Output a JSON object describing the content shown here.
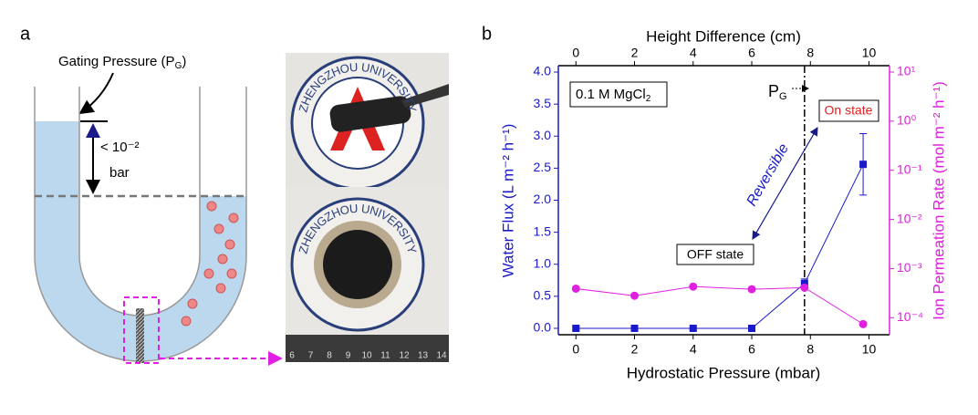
{
  "panel_a": {
    "label": "a",
    "gating_pressure": {
      "text": "Gating Pressure (P",
      "sub": "G",
      "end": ")"
    },
    "pressure_value": "< 10⁻²",
    "pressure_unit": "bar",
    "photos": [
      {
        "logo_text": "ZHENGZHOU UNIVERSITY"
      },
      {
        "logo_text": "ZHENGZHOU UNIVERSITY"
      }
    ],
    "ruler_labels": [
      "6",
      "7",
      "8",
      "9",
      "10",
      "11",
      "12",
      "13",
      "14"
    ]
  },
  "chart_data": {
    "type": "scatter-line",
    "panel_label": "b",
    "x_label": "Hydrostatic Pressure (mbar)",
    "x2_label": "Height Difference (cm)",
    "y_label": "Water Flux (L m⁻² h⁻¹)",
    "y2_label": "Ion Permeation Rate (mol m⁻² h⁻¹)",
    "xlim": [
      -0.6,
      10.7
    ],
    "xticks": [
      0,
      2,
      4,
      6,
      8,
      10
    ],
    "x2lim": [
      -0.6,
      10.7
    ],
    "x2ticks": [
      0,
      2,
      4,
      6,
      8,
      10
    ],
    "ylim": [
      -0.1,
      4.1
    ],
    "yticks": [
      {
        "value": 0,
        "label": "0.0"
      },
      0.5,
      {
        "value": 1,
        "label": "1.0"
      },
      1.5,
      {
        "value": 2,
        "label": "2.0"
      },
      2.5,
      {
        "value": 3,
        "label": "3.0"
      },
      3.5,
      {
        "value": 4,
        "label": "4.0"
      }
    ],
    "y2lim": [
      4.5e-05,
      13.5
    ],
    "y2_log": true,
    "y2ticks": [
      {
        "value": 0.0001,
        "label": "10⁻⁴"
      },
      {
        "value": 0.001,
        "label": "10⁻³"
      },
      {
        "value": 0.01,
        "label": "10⁻²"
      },
      {
        "value": 0.1,
        "label": "10⁻¹"
      },
      {
        "value": 1,
        "label": "10⁰"
      },
      {
        "value": 10,
        "label": "10¹"
      }
    ],
    "x": [
      0,
      2,
      4,
      6,
      7.8,
      9.8
    ],
    "series": [
      {
        "color": "#1a1acc",
        "marker": "square",
        "values": [
          0,
          0,
          0,
          0,
          0.7,
          2.56
        ],
        "errors": [
          0.02,
          0.02,
          0.02,
          0.02,
          0.07,
          0.48
        ]
      },
      {
        "color": "#e020e0",
        "marker": "circle",
        "axis": "y2",
        "values": [
          0.00039,
          0.00028,
          0.00043,
          0.00038,
          0.00041,
          7.4e-05
        ]
      }
    ],
    "gating_x": 7.8,
    "annotations": {
      "salt": {
        "text": "0.1 M MgCl",
        "sub": "2"
      },
      "gating": {
        "text": "P",
        "sub": "G"
      },
      "on_state": "On state",
      "off_state": "OFF state",
      "reversible": "Reversible"
    }
  }
}
